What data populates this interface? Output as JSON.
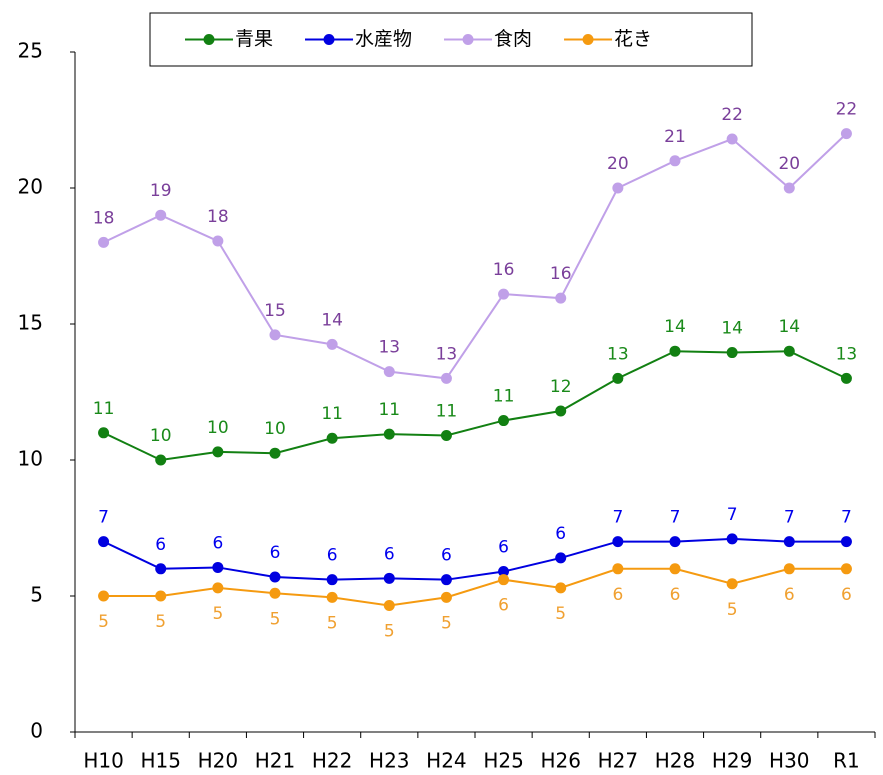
{
  "chart_data": {
    "type": "line",
    "categories": [
      "H10",
      "H15",
      "H20",
      "H21",
      "H22",
      "H23",
      "H24",
      "H25",
      "H26",
      "H27",
      "H28",
      "H29",
      "H30",
      "R1"
    ],
    "ylim": [
      0,
      25
    ],
    "yticks": [
      0,
      5,
      10,
      15,
      20,
      25
    ],
    "grid": false,
    "legend": "top",
    "series": [
      {
        "name": "青果",
        "color": "#128012",
        "label_color": "#1a8a1a",
        "label_position": "above",
        "values": [
          11,
          10,
          10.3,
          10.25,
          10.8,
          10.95,
          10.9,
          11.45,
          11.8,
          13,
          14,
          13.95,
          14,
          13
        ],
        "value_labels": [
          "11",
          "10",
          "10",
          "10",
          "11",
          "11",
          "11",
          "11",
          "12",
          "13",
          "14",
          "14",
          "14",
          "13"
        ]
      },
      {
        "name": "水産物",
        "color": "#0000e0",
        "label_color": "#0000ee",
        "label_position": "above",
        "values": [
          7,
          6,
          6.05,
          5.7,
          5.6,
          5.65,
          5.6,
          5.9,
          6.4,
          7,
          7,
          7.1,
          7,
          7
        ],
        "value_labels": [
          "7",
          "6",
          "6",
          "6",
          "6",
          "6",
          "6",
          "6",
          "6",
          "7",
          "7",
          "7",
          "7",
          "7"
        ]
      },
      {
        "name": "食肉",
        "color": "#c0a0e8",
        "label_color": "#7a3f9a",
        "label_position": "above",
        "values": [
          18,
          19,
          18.05,
          14.6,
          14.25,
          13.25,
          13,
          16.1,
          15.95,
          20,
          21,
          21.8,
          20,
          22
        ],
        "value_labels": [
          "18",
          "19",
          "18",
          "15",
          "14",
          "13",
          "13",
          "16",
          "16",
          "20",
          "21",
          "22",
          "20",
          "22"
        ]
      },
      {
        "name": "花き",
        "color": "#f59a10",
        "label_color": "#f0a030",
        "label_position": "below",
        "values": [
          5,
          5,
          5.3,
          5.1,
          4.95,
          4.65,
          4.95,
          5.6,
          5.3,
          6,
          6,
          5.45,
          6,
          6
        ],
        "value_labels": [
          "5",
          "5",
          "5",
          "5",
          "5",
          "5",
          "5",
          "6",
          "5",
          "6",
          "6",
          "5",
          "6",
          "6"
        ]
      }
    ]
  }
}
